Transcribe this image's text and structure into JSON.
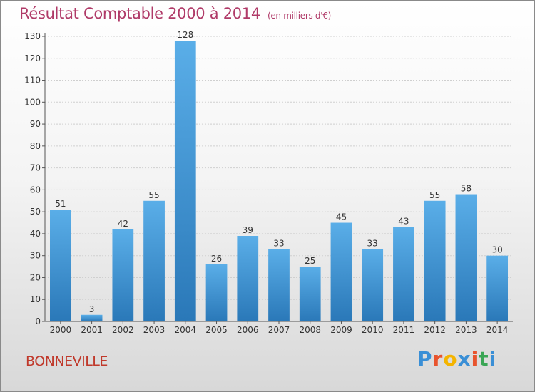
{
  "header": {
    "title": "Résultat Comptable 2000 à 2014",
    "subtitle": "(en milliers d'€)"
  },
  "footer": {
    "city": "BONNEVILLE",
    "logo_letters": [
      "P",
      "r",
      "o",
      "x",
      "i",
      "t",
      "i"
    ],
    "logo_colors": [
      "#3a8fd6",
      "#e8542e",
      "#f4b400",
      "#3a8fd6",
      "#e8542e",
      "#3aa655",
      "#3a8fd6"
    ]
  },
  "chart_data": {
    "type": "bar",
    "title": "Résultat Comptable 2000 à 2014",
    "xlabel": "",
    "ylabel": "",
    "categories": [
      "2000",
      "2001",
      "2002",
      "2003",
      "2004",
      "2005",
      "2006",
      "2007",
      "2008",
      "2009",
      "2010",
      "2011",
      "2012",
      "2013",
      "2014"
    ],
    "values": [
      51,
      3,
      42,
      55,
      128,
      26,
      39,
      33,
      25,
      45,
      33,
      43,
      55,
      58,
      30
    ],
    "ylim": [
      0,
      130
    ],
    "yticks": [
      0,
      10,
      20,
      30,
      40,
      50,
      60,
      70,
      80,
      90,
      100,
      110,
      120,
      130
    ],
    "grid": true,
    "bar_color_top": "#5aaee8",
    "bar_color_bottom": "#2a78b8"
  }
}
